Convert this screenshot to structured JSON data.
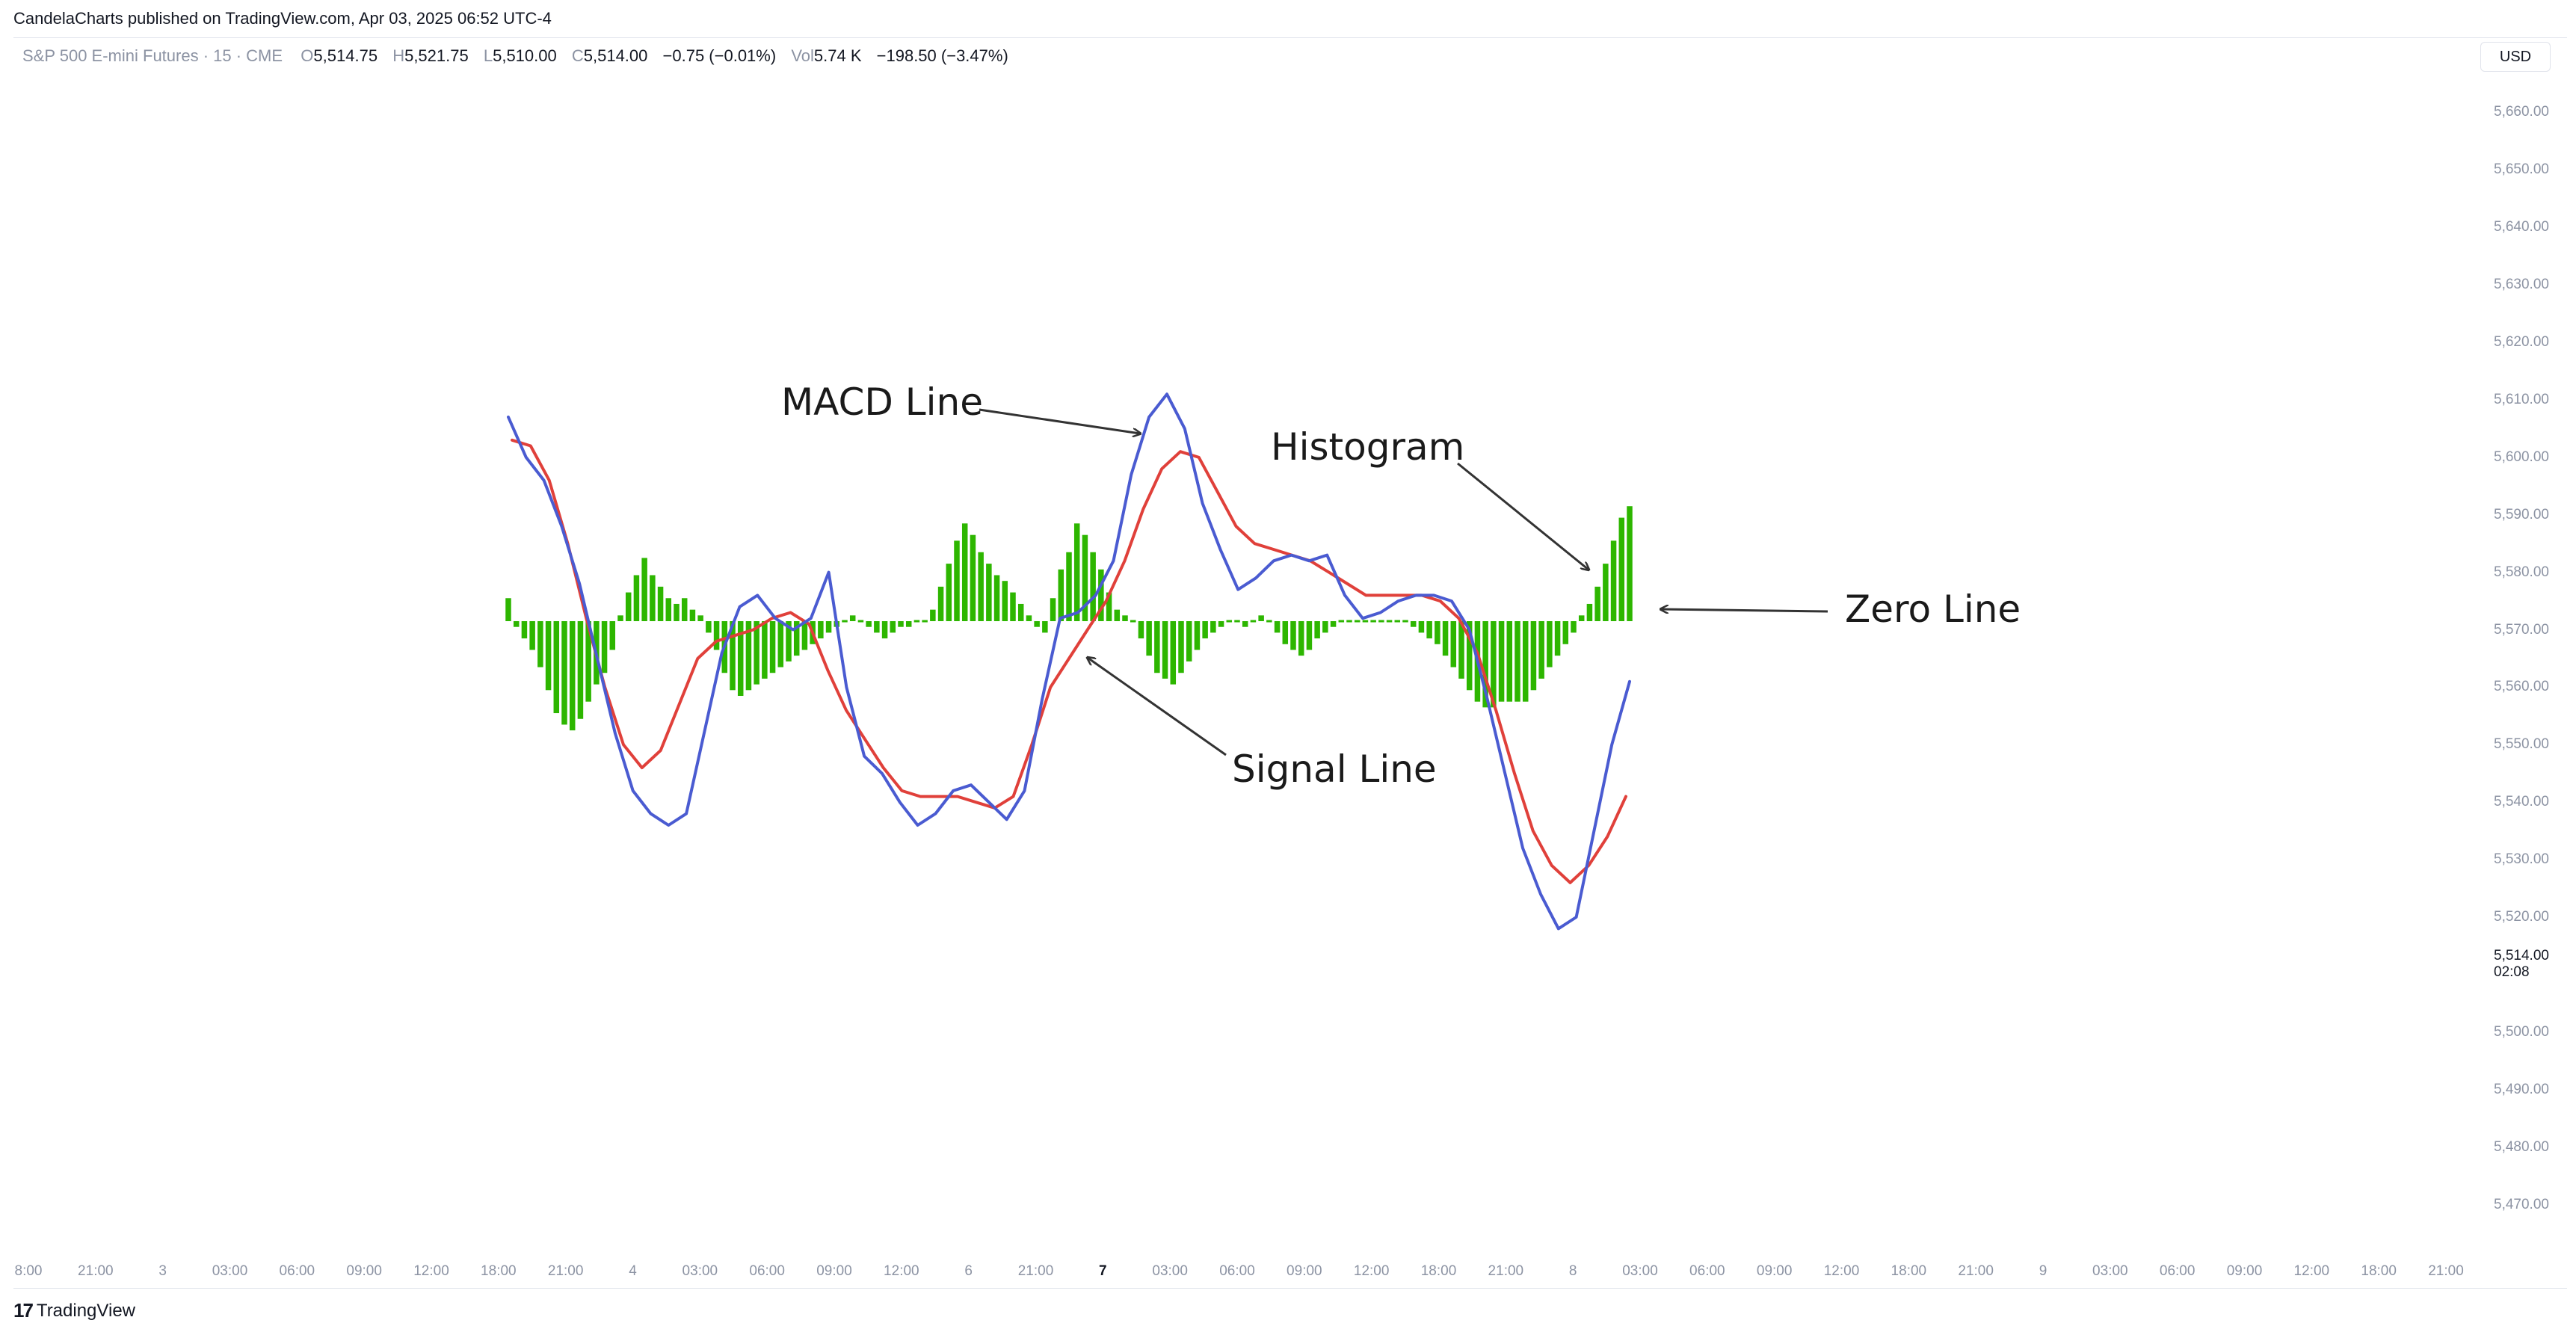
{
  "header": {
    "publisher_line": "CandelaCharts published on TradingView.com, Apr 03, 2025 06:52 UTC-4"
  },
  "symbol_bar": {
    "symbol": "S&P 500 E-mini Futures · 15 · CME",
    "o_label": "O",
    "o_value": "5,514.75",
    "h_label": "H",
    "h_value": "5,521.75",
    "l_label": "L",
    "l_value": "5,510.00",
    "c_label": "C",
    "c_value": "5,514.00",
    "change": "−0.75 (−0.01%)",
    "vol_label": "Vol",
    "vol_value": "5.74 K",
    "extra": "−198.50 (−3.47%)"
  },
  "currency": "USD",
  "price_tag": {
    "price": "5,514.00",
    "time": "02:08"
  },
  "footer": {
    "logo_text": "TradingView"
  },
  "colors": {
    "macd": "#4a5bd1",
    "signal": "#e0403a",
    "histogram": "#2db600",
    "axis_text": "#8c93a3"
  },
  "chart_data": {
    "type": "line",
    "y_axis": {
      "ticks": [
        "5,660.00",
        "5,650.00",
        "5,640.00",
        "5,630.00",
        "5,620.00",
        "5,610.00",
        "5,600.00",
        "5,590.00",
        "5,580.00",
        "5,570.00",
        "5,560.00",
        "5,550.00",
        "5,540.00",
        "5,530.00",
        "5,520.00",
        "5,500.00",
        "5,490.00",
        "5,480.00",
        "5,470.00"
      ],
      "ylim": [
        5465,
        5665
      ]
    },
    "x_axis": {
      "ticks": [
        {
          "label": "8:00",
          "bold": false
        },
        {
          "label": "21:00",
          "bold": false
        },
        {
          "label": "3",
          "bold": false
        },
        {
          "label": "03:00",
          "bold": false
        },
        {
          "label": "06:00",
          "bold": false
        },
        {
          "label": "09:00",
          "bold": false
        },
        {
          "label": "12:00",
          "bold": false
        },
        {
          "label": "18:00",
          "bold": false
        },
        {
          "label": "21:00",
          "bold": false
        },
        {
          "label": "4",
          "bold": false
        },
        {
          "label": "03:00",
          "bold": false
        },
        {
          "label": "06:00",
          "bold": false
        },
        {
          "label": "09:00",
          "bold": false
        },
        {
          "label": "12:00",
          "bold": false
        },
        {
          "label": "6",
          "bold": false
        },
        {
          "label": "21:00",
          "bold": false
        },
        {
          "label": "7",
          "bold": true
        },
        {
          "label": "03:00",
          "bold": false
        },
        {
          "label": "06:00",
          "bold": false
        },
        {
          "label": "09:00",
          "bold": false
        },
        {
          "label": "12:00",
          "bold": false
        },
        {
          "label": "18:00",
          "bold": false
        },
        {
          "label": "21:00",
          "bold": false
        },
        {
          "label": "8",
          "bold": false
        },
        {
          "label": "03:00",
          "bold": false
        },
        {
          "label": "06:00",
          "bold": false
        },
        {
          "label": "09:00",
          "bold": false
        },
        {
          "label": "12:00",
          "bold": false
        },
        {
          "label": "18:00",
          "bold": false
        },
        {
          "label": "21:00",
          "bold": false
        },
        {
          "label": "9",
          "bold": false
        },
        {
          "label": "03:00",
          "bold": false
        },
        {
          "label": "06:00",
          "bold": false
        },
        {
          "label": "09:00",
          "bold": false
        },
        {
          "label": "12:00",
          "bold": false
        },
        {
          "label": "18:00",
          "bold": false
        },
        {
          "label": "21:00",
          "bold": false
        }
      ]
    },
    "zero_level": 5571.5,
    "series": [
      {
        "key": "macd",
        "values": [
          5607,
          5600,
          5596,
          5588,
          5578,
          5565,
          5552,
          5542,
          5538,
          5536,
          5538,
          5552,
          5566,
          5574,
          5576,
          5572,
          5570,
          5572,
          5580,
          5560,
          5548,
          5545,
          5540,
          5536,
          5538,
          5542,
          5543,
          5540,
          5537,
          5542,
          5558,
          5572,
          5573,
          5576,
          5582,
          5597,
          5607,
          5611,
          5605,
          5592,
          5584,
          5577,
          5579,
          5582,
          5583,
          5582,
          5583,
          5576,
          5572,
          5573,
          5575,
          5576,
          5576,
          5575,
          5570,
          5558,
          5545,
          5532,
          5524,
          5518,
          5520,
          5535,
          5550,
          5561
        ]
      },
      {
        "key": "signal",
        "values": [
          5603,
          5602,
          5596,
          5585,
          5572,
          5560,
          5550,
          5546,
          5549,
          5557,
          5565,
          5568,
          5569,
          5570,
          5572,
          5573,
          5571,
          5563,
          5556,
          5551,
          5546,
          5542,
          5541,
          5541,
          5541,
          5540,
          5539,
          5541,
          5550,
          5560,
          5565,
          5570,
          5575,
          5582,
          5591,
          5598,
          5601,
          5600,
          5594,
          5588,
          5585,
          5584,
          5583,
          5582,
          5580,
          5578,
          5576,
          5576,
          5576,
          5576,
          5575,
          5572,
          5566,
          5556,
          5545,
          5535,
          5529,
          5526,
          5529,
          5534,
          5541
        ]
      },
      {
        "key": "histogram",
        "values": [
          4,
          -1,
          -3,
          -5,
          -8,
          -12,
          -16,
          -18,
          -19,
          -17,
          -14,
          -11,
          -9,
          -5,
          1,
          5,
          8,
          11,
          8,
          6,
          4,
          3,
          4,
          2,
          1,
          -2,
          -5,
          -9,
          -12,
          -13,
          -12,
          -11,
          -10,
          -9,
          -8,
          -7,
          -6,
          -5,
          -4,
          -3,
          -2,
          -1,
          0,
          1,
          0,
          -1,
          -2,
          -3,
          -2,
          -1,
          -1,
          0,
          0,
          2,
          6,
          10,
          14,
          17,
          15,
          12,
          10,
          8,
          7,
          5,
          3,
          1,
          -1,
          -2,
          4,
          9,
          12,
          17,
          15,
          12,
          9,
          5,
          2,
          1,
          0,
          -3,
          -6,
          -9,
          -10,
          -11,
          -9,
          -7,
          -5,
          -3,
          -2,
          -1,
          0,
          0,
          -1,
          0,
          1,
          0,
          -2,
          -4,
          -5,
          -6,
          -5,
          -3,
          -2,
          -1,
          0,
          0,
          0,
          0,
          0,
          0,
          0,
          0,
          0,
          -1,
          -2,
          -3,
          -4,
          -6,
          -8,
          -10,
          -12,
          -14,
          -15,
          -15,
          -14,
          -14,
          -14,
          -14,
          -12,
          -10,
          -8,
          -6,
          -4,
          -2,
          1,
          3,
          6,
          10,
          14,
          18,
          20
        ]
      }
    ],
    "annotations": [
      {
        "key": "macd_label",
        "text": "MACD Line"
      },
      {
        "key": "histogram_label",
        "text": "Histogram"
      },
      {
        "key": "zero_label",
        "text": "Zero Line"
      },
      {
        "key": "signal_label",
        "text": "Signal Line"
      }
    ]
  }
}
